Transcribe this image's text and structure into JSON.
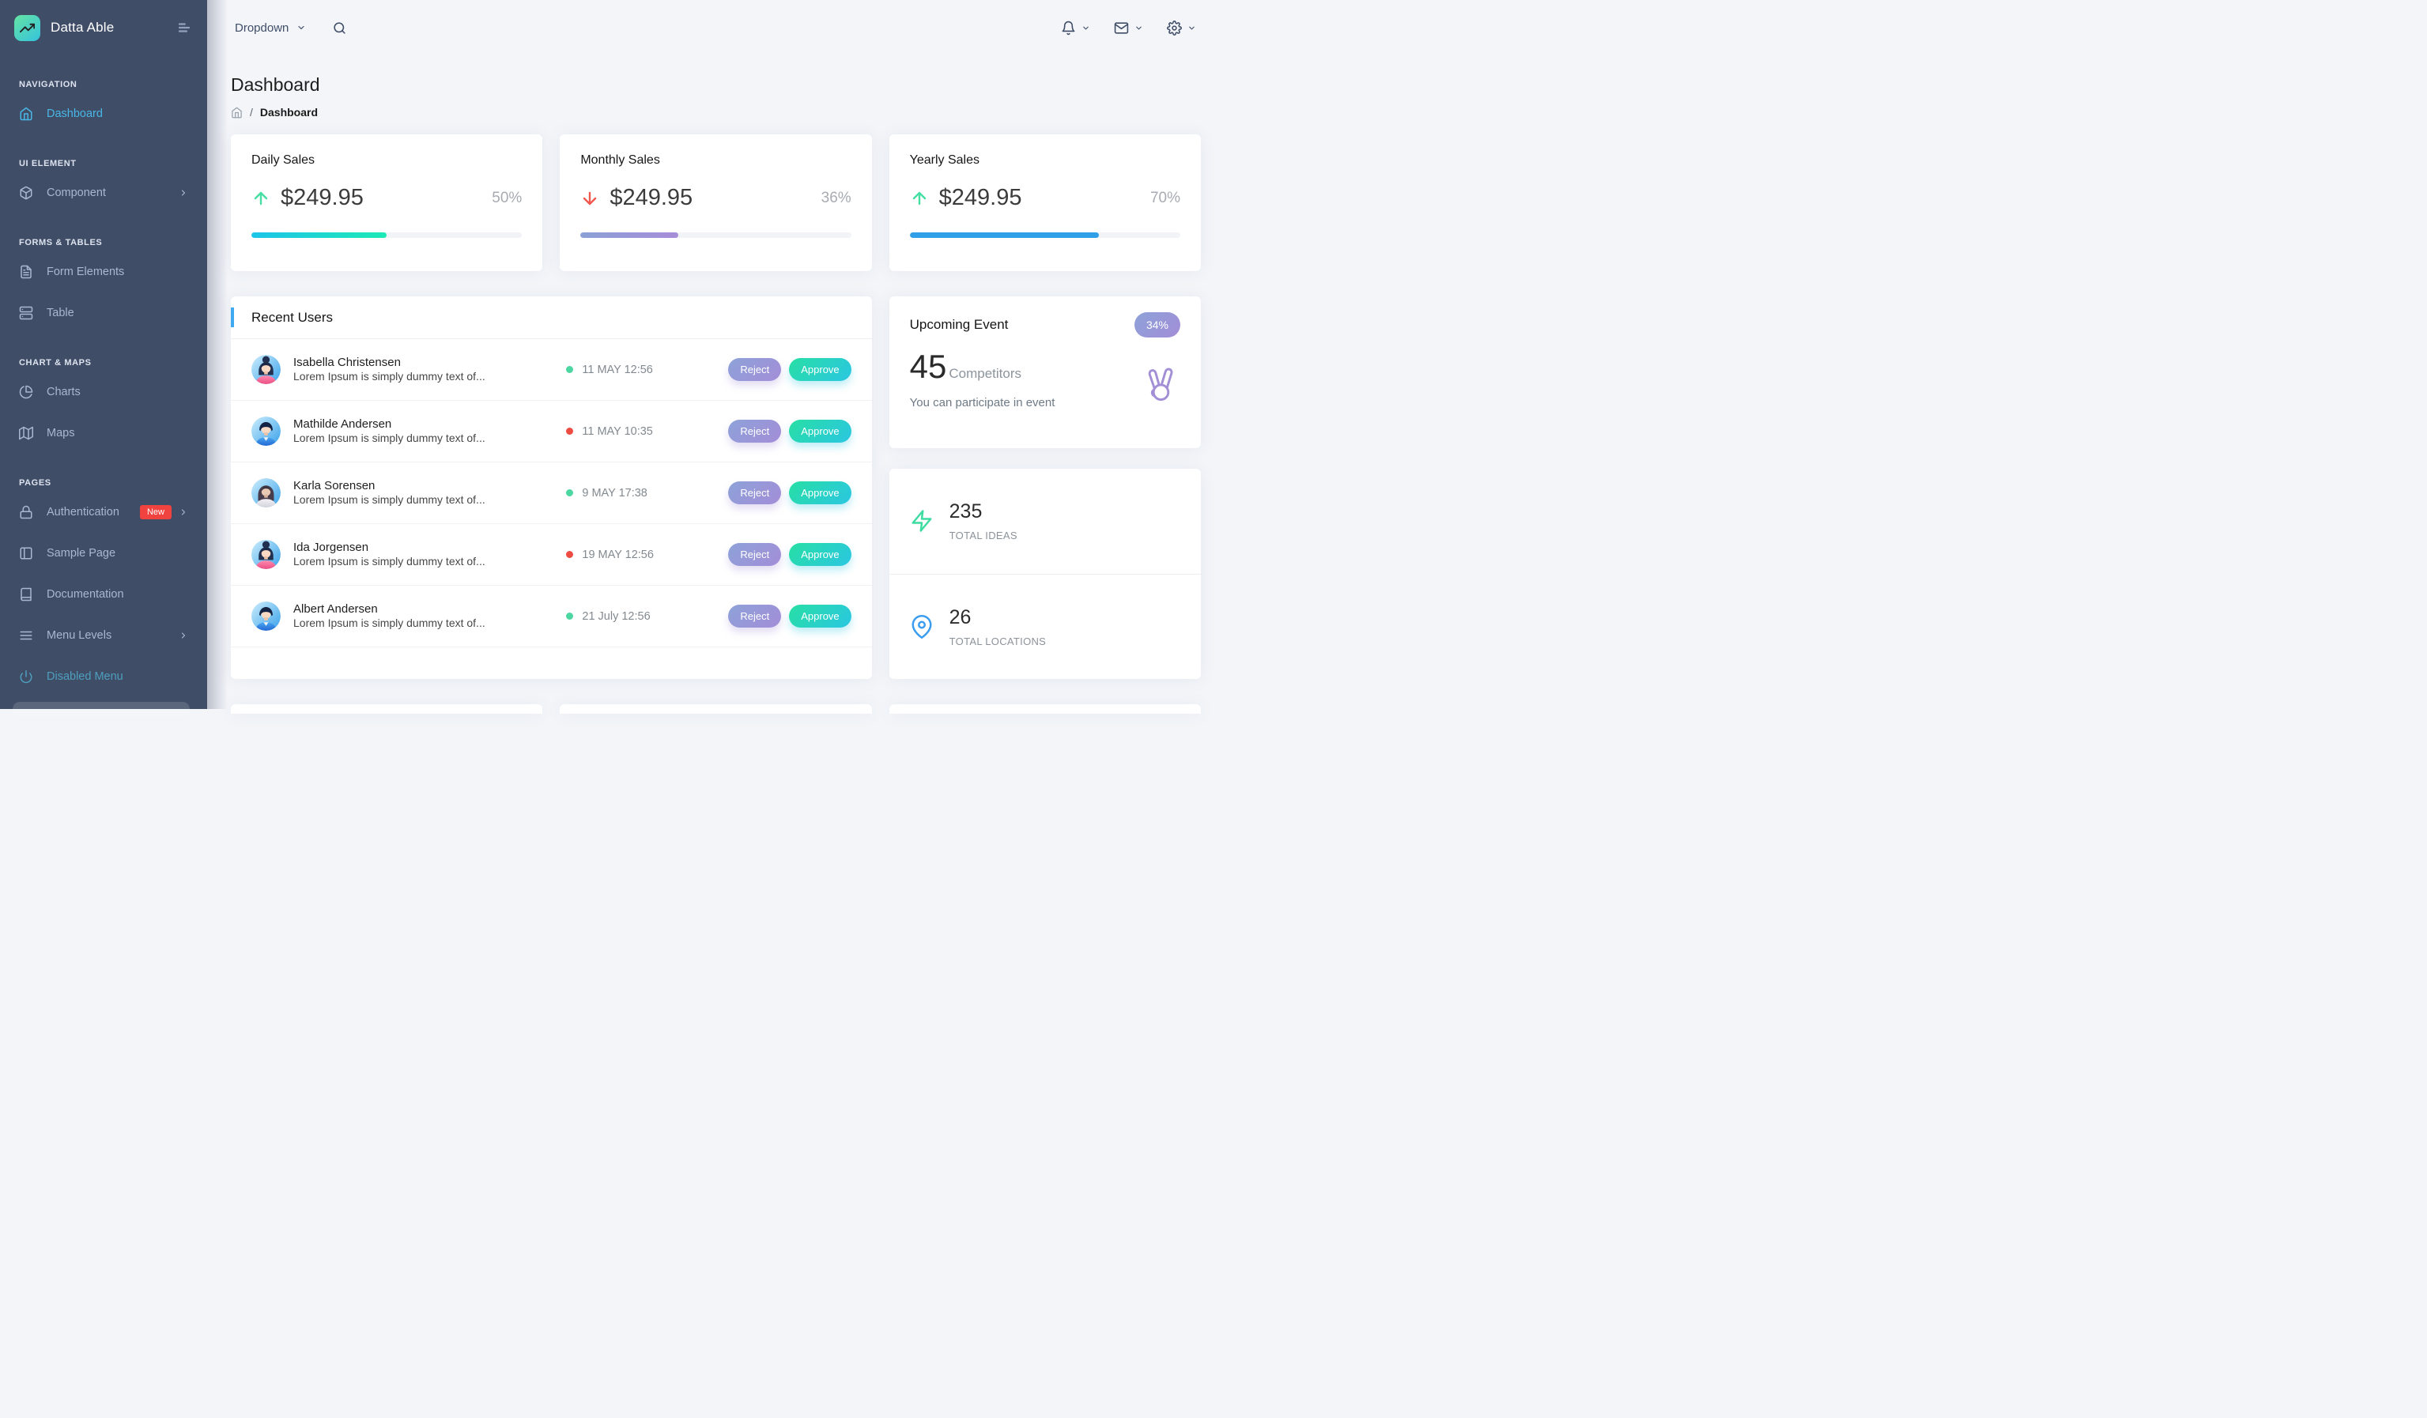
{
  "brand": {
    "name": "Datta Able"
  },
  "topbar": {
    "dropdown_label": "Dropdown"
  },
  "page": {
    "title": "Dashboard",
    "breadcrumb_sep": "/",
    "breadcrumb_current": "Dashboard"
  },
  "sidebar": {
    "captions": {
      "c0": "NAVIGATION",
      "c1": "UI ELEMENT",
      "c2": "FORMS & TABLES",
      "c3": "CHART & MAPS",
      "c4": "PAGES"
    },
    "items": [
      {
        "label": "Dashboard",
        "icon": "home-icon",
        "active": true
      },
      {
        "label": "Component",
        "icon": "box-icon",
        "chevron": true
      },
      {
        "label": "Form Elements",
        "icon": "file-text-icon"
      },
      {
        "label": "Table",
        "icon": "server-icon"
      },
      {
        "label": "Charts",
        "icon": "pie-chart-icon"
      },
      {
        "label": "Maps",
        "icon": "map-icon"
      },
      {
        "label": "Authentication",
        "icon": "lock-icon",
        "badge": "New",
        "chevron": true
      },
      {
        "label": "Sample Page",
        "icon": "layout-icon"
      },
      {
        "label": "Documentation",
        "icon": "book-icon"
      },
      {
        "label": "Menu Levels",
        "icon": "menu-icon",
        "chevron": true
      },
      {
        "label": "Disabled Menu",
        "icon": "power-icon",
        "disabled": true
      }
    ]
  },
  "sales": [
    {
      "title": "Daily Sales",
      "trend": "up",
      "amount": "$249.95",
      "percent": "50%",
      "bar_width": "50%",
      "bar_color": "teal-green-gradient"
    },
    {
      "title": "Monthly Sales",
      "trend": "down",
      "amount": "$249.95",
      "percent": "36%",
      "bar_width": "36%",
      "bar_color": "purple-gradient"
    },
    {
      "title": "Yearly Sales",
      "trend": "up",
      "amount": "$249.95",
      "percent": "70%",
      "bar_width": "70%",
      "bar_color": "blue"
    }
  ],
  "recent_users": {
    "title": "Recent Users",
    "reject_label": "Reject",
    "approve_label": "Approve",
    "rows": [
      {
        "name": "Isabella Christensen",
        "desc": "Lorem Ipsum is simply dummy text of...",
        "dot": "green",
        "date": "11 MAY 12:56",
        "avatar": "female-bun"
      },
      {
        "name": "Mathilde Andersen",
        "desc": "Lorem Ipsum is simply dummy text of...",
        "dot": "red",
        "date": "11 MAY 10:35",
        "avatar": "male"
      },
      {
        "name": "Karla Sorensen",
        "desc": "Lorem Ipsum is simply dummy text of...",
        "dot": "green",
        "date": "9 MAY 17:38",
        "avatar": "female-dark"
      },
      {
        "name": "Ida Jorgensen",
        "desc": "Lorem Ipsum is simply dummy text of...",
        "dot": "red",
        "date": "19 MAY 12:56",
        "avatar": "female-bun"
      },
      {
        "name": "Albert Andersen",
        "desc": "Lorem Ipsum is simply dummy text of...",
        "dot": "green",
        "date": "21 July 12:56",
        "avatar": "male"
      }
    ]
  },
  "event": {
    "title": "Upcoming Event",
    "badge": "34%",
    "count": "45",
    "count_label": "Competitors",
    "note": "You can participate in event",
    "icon": "victory-hand-icon"
  },
  "stats": [
    {
      "value": "235",
      "label": "TOTAL IDEAS",
      "icon": "zap-icon"
    },
    {
      "value": "26",
      "label": "TOTAL LOCATIONS",
      "icon": "map-pin-icon"
    }
  ],
  "colors": {
    "sidebar_bg": "#3f4d67",
    "body_bg": "#f3f5f9",
    "active_item": "#49b6e5",
    "badge_new": "#f0423e",
    "green_up": "#45dfa3",
    "red_down": "#f1574c",
    "bar_teal_a": "#1dc4e9",
    "bar_teal_b": "#1de9b6",
    "bar_purple_a": "#8ba0d6",
    "bar_purple_b": "#a78dd8",
    "bar_blue": "#2f9fe8",
    "dot_green": "#4cd6a2",
    "dot_red": "#ee4b43",
    "btn_purple_a": "#8da2d8",
    "btn_purple_b": "#a38dd8",
    "btn_teal_a": "#27dfa4",
    "btn_teal_b": "#2bc6e2",
    "accent_header": "#3ea8f0",
    "hand_purple": "#a38fd6"
  }
}
